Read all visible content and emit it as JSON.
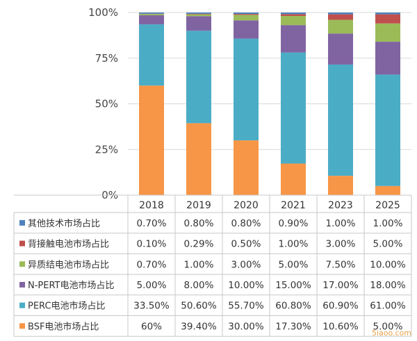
{
  "chart_data": {
    "type": "bar",
    "stacked": true,
    "categories": [
      "2018",
      "2019",
      "2020",
      "2021",
      "2023",
      "2025"
    ],
    "yticks": [
      "0%",
      "25%",
      "50%",
      "75%",
      "100%"
    ],
    "ylim": [
      0,
      100
    ],
    "grid": true,
    "legend": "table-below",
    "series": [
      {
        "name": "BSF电池市场占比",
        "color": "#f79646",
        "values": [
          60,
          39.4,
          30,
          17.3,
          10.6,
          5
        ],
        "labels": [
          "60%",
          "39.40%",
          "30.00%",
          "17.30%",
          "10.60%",
          "5.00%"
        ]
      },
      {
        "name": "PERC电池市场占比",
        "color": "#4bacc6",
        "values": [
          33.5,
          50.6,
          55.7,
          60.8,
          60.9,
          61
        ],
        "labels": [
          "33.50%",
          "50.60%",
          "55.70%",
          "60.80%",
          "60.90%",
          "61.00%"
        ]
      },
      {
        "name": "N-PERT电池市场占比",
        "color": "#8064a2",
        "values": [
          5,
          8,
          10,
          15,
          17,
          18
        ],
        "labels": [
          "5.00%",
          "8.00%",
          "10.00%",
          "15.00%",
          "17.00%",
          "18.00%"
        ]
      },
      {
        "name": "异质结电池市场占比",
        "color": "#9bbb59",
        "values": [
          0.7,
          1,
          3,
          5,
          7.5,
          10
        ],
        "labels": [
          "0.70%",
          "1.00%",
          "3.00%",
          "5.00%",
          "7.50%",
          "10.00%"
        ]
      },
      {
        "name": "背接触电池市场占比",
        "color": "#c0504d",
        "values": [
          0.1,
          0.29,
          0.5,
          1,
          3,
          5
        ],
        "labels": [
          "0.10%",
          "0.29%",
          "0.50%",
          "1.00%",
          "3.00%",
          "5.00%"
        ]
      },
      {
        "name": "其他技术市场占比",
        "color": "#4f81bd",
        "values": [
          0.7,
          0.8,
          0.8,
          0.9,
          1,
          1
        ],
        "labels": [
          "0.70%",
          "0.80%",
          "0.80%",
          "0.90%",
          "1.00%",
          "1.00%"
        ]
      }
    ]
  },
  "watermark": "5iaoo.com"
}
